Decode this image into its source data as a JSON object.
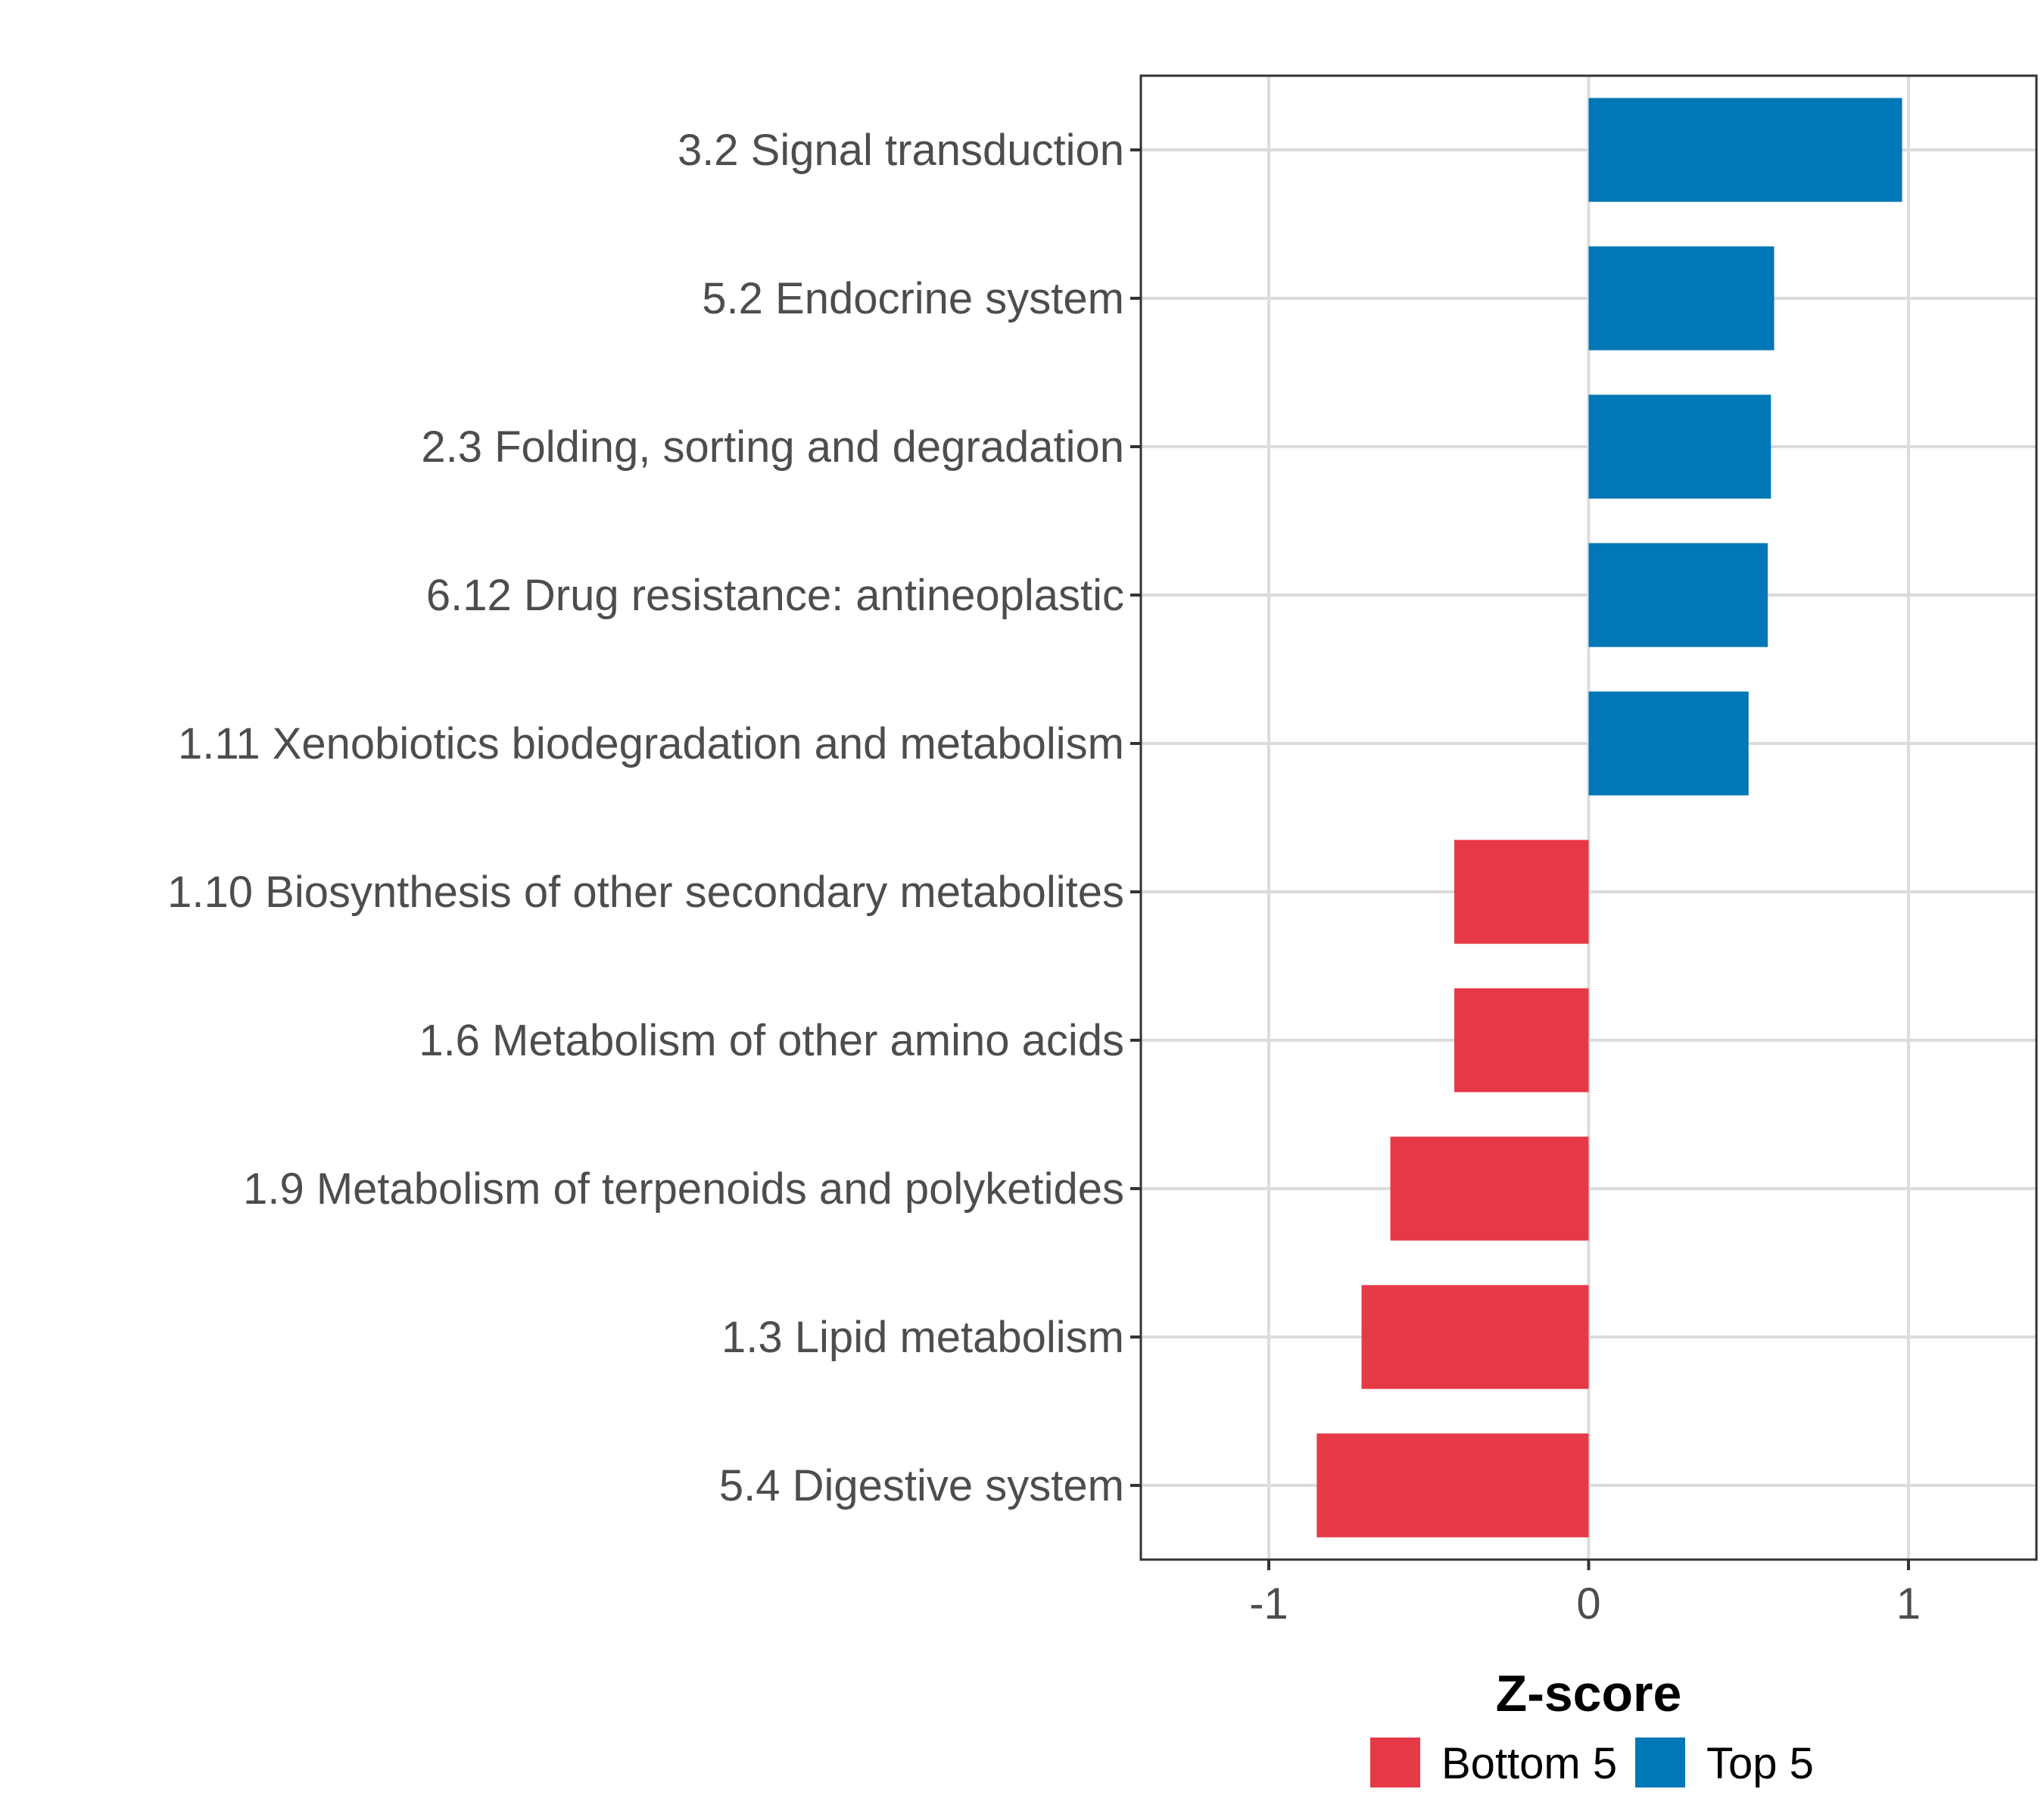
{
  "chart_data": {
    "type": "bar",
    "orientation": "horizontal",
    "title": "",
    "xlabel": "Z-score",
    "ylabel": "",
    "xlim": [
      -1.4,
      1.4
    ],
    "xticks": [
      -1,
      0,
      1
    ],
    "xtick_labels": [
      "-1",
      "0",
      "1"
    ],
    "grid": true,
    "legend_position": "bottom",
    "categories": [
      "3.2 Signal transduction",
      "5.2 Endocrine system",
      "2.3 Folding, sorting and degradation",
      "6.12 Drug resistance: antineoplastic",
      "1.11 Xenobiotics biodegradation and metabolism",
      "1.10 Biosynthesis of other secondary metabolites",
      "1.6 Metabolism of other amino acids",
      "1.9 Metabolism of terpenoids and polyketides",
      "1.3 Lipid metabolism",
      "5.4 Digestive system"
    ],
    "values": [
      0.98,
      0.58,
      0.57,
      0.56,
      0.5,
      -0.42,
      -0.42,
      -0.62,
      -0.71,
      -0.85
    ],
    "groups": [
      "Top 5",
      "Top 5",
      "Top 5",
      "Top 5",
      "Top 5",
      "Bottom 5",
      "Bottom 5",
      "Bottom 5",
      "Bottom 5",
      "Bottom 5"
    ],
    "legend": [
      {
        "label": "Bottom 5",
        "color": "#e63946"
      },
      {
        "label": "Top 5",
        "color": "#0077b6"
      }
    ]
  }
}
